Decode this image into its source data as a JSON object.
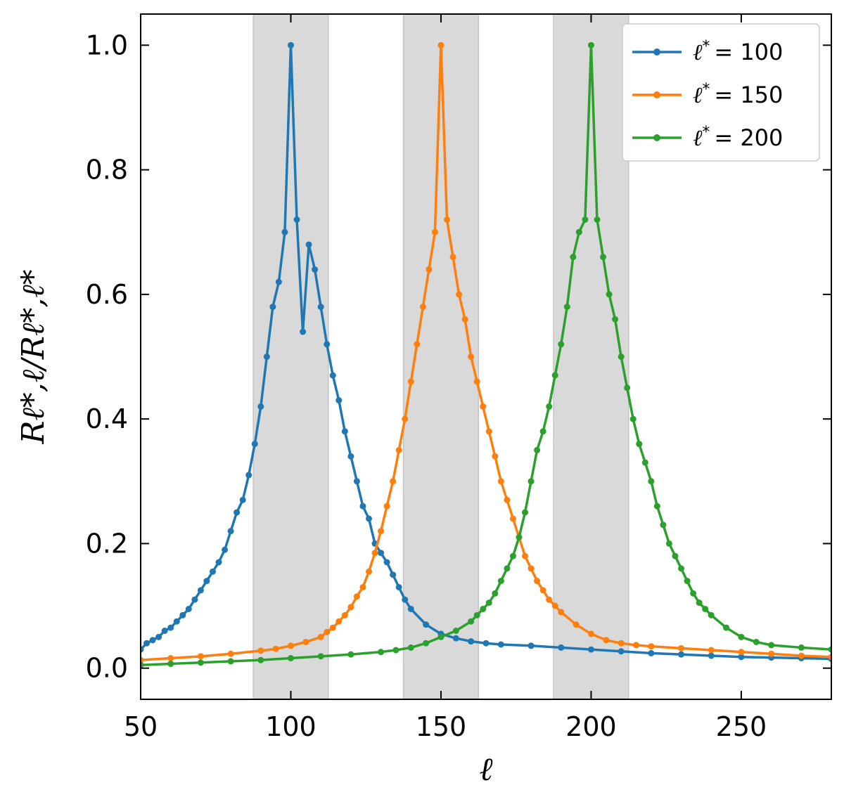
{
  "chart_data": {
    "type": "line",
    "title": "",
    "xlabel": "ℓ",
    "ylabel": "Rℓ*,ℓ/Rℓ*,ℓ*",
    "xlim": [
      50,
      280
    ],
    "ylim": [
      -0.05,
      1.05
    ],
    "xticks": [
      50,
      100,
      150,
      200,
      250
    ],
    "yticks": [
      0.0,
      0.2,
      0.4,
      0.6,
      0.8,
      1.0
    ],
    "xtick_labels": [
      "50",
      "100",
      "150",
      "200",
      "250"
    ],
    "ytick_labels": [
      "0.0",
      "0.2",
      "0.4",
      "0.6",
      "0.8",
      "1.0"
    ],
    "grid": false,
    "legend_position": "top-right",
    "shaded_bands": [
      [
        87.5,
        112.5
      ],
      [
        137.5,
        162.5
      ],
      [
        187.5,
        212.5
      ]
    ],
    "shade_color": "#d9d9d9",
    "series": [
      {
        "name": "ℓ* = 100",
        "legend_label": "= 100",
        "center": 100,
        "color": "#1f77b4",
        "x": [
          50,
          52,
          54,
          56,
          58,
          60,
          62,
          64,
          66,
          68,
          70,
          72,
          74,
          76,
          78,
          80,
          82,
          84,
          86,
          88,
          90,
          92,
          94,
          96,
          98,
          100,
          102,
          104,
          106,
          108,
          110,
          112,
          114,
          116,
          118,
          120,
          122,
          124,
          126,
          128,
          130,
          132,
          134,
          136,
          138,
          140,
          145,
          150,
          155,
          160,
          165,
          170,
          180,
          190,
          200,
          210,
          220,
          230,
          240,
          250,
          260,
          270,
          280
        ],
        "y": [
          0.03,
          0.04,
          0.045,
          0.05,
          0.06,
          0.065,
          0.075,
          0.085,
          0.095,
          0.11,
          0.125,
          0.14,
          0.155,
          0.17,
          0.19,
          0.22,
          0.25,
          0.27,
          0.31,
          0.36,
          0.42,
          0.5,
          0.58,
          0.62,
          0.7,
          1.0,
          0.72,
          0.54,
          0.68,
          0.64,
          0.58,
          0.52,
          0.47,
          0.43,
          0.38,
          0.34,
          0.3,
          0.26,
          0.24,
          0.2,
          0.185,
          0.17,
          0.15,
          0.13,
          0.11,
          0.095,
          0.07,
          0.055,
          0.048,
          0.043,
          0.04,
          0.038,
          0.036,
          0.033,
          0.03,
          0.027,
          0.024,
          0.022,
          0.02,
          0.018,
          0.017,
          0.016,
          0.015
        ]
      },
      {
        "name": "ℓ* = 150",
        "legend_label": "= 150",
        "center": 150,
        "color": "#ff7f0e",
        "x": [
          50,
          60,
          70,
          80,
          90,
          95,
          100,
          105,
          110,
          112,
          114,
          116,
          118,
          120,
          122,
          124,
          126,
          128,
          130,
          132,
          134,
          136,
          138,
          140,
          142,
          144,
          146,
          148,
          150,
          152,
          154,
          156,
          158,
          160,
          162,
          164,
          166,
          168,
          170,
          172,
          174,
          176,
          178,
          180,
          182,
          184,
          186,
          188,
          190,
          195,
          200,
          205,
          210,
          215,
          220,
          230,
          240,
          250,
          260,
          270,
          280
        ],
        "y": [
          0.013,
          0.016,
          0.019,
          0.023,
          0.028,
          0.031,
          0.036,
          0.042,
          0.05,
          0.058,
          0.065,
          0.075,
          0.085,
          0.098,
          0.115,
          0.13,
          0.155,
          0.185,
          0.22,
          0.26,
          0.3,
          0.35,
          0.4,
          0.46,
          0.52,
          0.58,
          0.64,
          0.7,
          1.0,
          0.72,
          0.66,
          0.6,
          0.56,
          0.5,
          0.46,
          0.42,
          0.38,
          0.34,
          0.3,
          0.27,
          0.24,
          0.21,
          0.18,
          0.16,
          0.14,
          0.125,
          0.11,
          0.1,
          0.09,
          0.07,
          0.055,
          0.045,
          0.04,
          0.037,
          0.035,
          0.032,
          0.029,
          0.026,
          0.023,
          0.02,
          0.018
        ]
      },
      {
        "name": "ℓ* = 200",
        "legend_label": "= 200",
        "center": 200,
        "color": "#2ca02c",
        "x": [
          50,
          60,
          70,
          80,
          90,
          100,
          110,
          120,
          130,
          135,
          140,
          145,
          150,
          155,
          160,
          162,
          164,
          166,
          168,
          170,
          172,
          174,
          176,
          178,
          180,
          182,
          184,
          186,
          188,
          190,
          192,
          194,
          196,
          198,
          200,
          202,
          204,
          206,
          208,
          210,
          212,
          214,
          216,
          218,
          220,
          222,
          224,
          226,
          228,
          230,
          232,
          234,
          236,
          238,
          240,
          245,
          250,
          255,
          260,
          270,
          280
        ],
        "y": [
          0.005,
          0.007,
          0.009,
          0.011,
          0.013,
          0.016,
          0.019,
          0.022,
          0.026,
          0.029,
          0.033,
          0.04,
          0.05,
          0.06,
          0.075,
          0.085,
          0.095,
          0.105,
          0.12,
          0.14,
          0.16,
          0.18,
          0.21,
          0.25,
          0.3,
          0.35,
          0.38,
          0.42,
          0.47,
          0.52,
          0.58,
          0.66,
          0.7,
          0.72,
          1.0,
          0.72,
          0.66,
          0.6,
          0.56,
          0.5,
          0.45,
          0.4,
          0.36,
          0.33,
          0.3,
          0.26,
          0.23,
          0.2,
          0.18,
          0.16,
          0.14,
          0.12,
          0.105,
          0.095,
          0.085,
          0.065,
          0.05,
          0.042,
          0.037,
          0.033,
          0.03
        ]
      }
    ]
  }
}
